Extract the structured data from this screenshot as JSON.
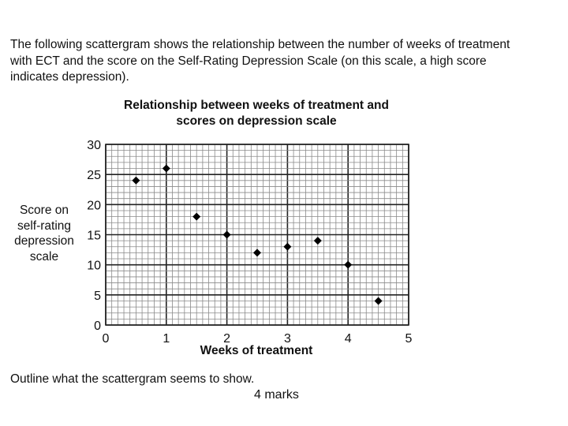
{
  "intro": {
    "line1": "The following scattergram shows the relationship between the number of weeks of treatment",
    "line2": "with ECT and the score on the Self-Rating Depression Scale (on this scale, a high score",
    "line3": "indicates depression)."
  },
  "question": "Outline what the scattergram seems to show.",
  "marks": "4 marks",
  "chart_data": {
    "type": "scatter",
    "title_line1": "Relationship between weeks of treatment and",
    "title_line2": "scores on depression scale",
    "xlabel": "Weeks of treatment",
    "ylabel_lines": [
      "Score on",
      "self-rating",
      "depression",
      "scale"
    ],
    "xlim": [
      0,
      5
    ],
    "ylim": [
      0,
      30
    ],
    "x_ticks": [
      0,
      1,
      2,
      3,
      4,
      5
    ],
    "y_ticks": [
      0,
      5,
      10,
      15,
      20,
      25,
      30
    ],
    "grid": true,
    "marker": "diamond",
    "marker_color": "#000000",
    "points": [
      {
        "x": 0.5,
        "y": 24
      },
      {
        "x": 1.0,
        "y": 26
      },
      {
        "x": 1.5,
        "y": 18
      },
      {
        "x": 2.0,
        "y": 15
      },
      {
        "x": 2.5,
        "y": 12
      },
      {
        "x": 3.0,
        "y": 13
      },
      {
        "x": 3.5,
        "y": 14
      },
      {
        "x": 4.0,
        "y": 10
      },
      {
        "x": 4.5,
        "y": 4
      }
    ]
  }
}
